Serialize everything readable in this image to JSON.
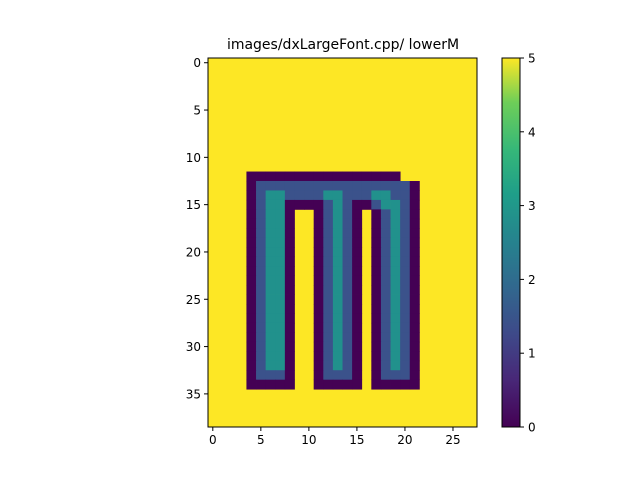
{
  "chart_data": {
    "type": "heatmap",
    "title": "images/dxLargeFont.cpp/ lowerM",
    "xlabel": "",
    "ylabel": "",
    "colormap": "viridis",
    "columns": 28,
    "rows": 39,
    "xlim": [
      -0.5,
      27.5
    ],
    "ylim": [
      38.5,
      -0.5
    ],
    "x_ticks": [
      0,
      5,
      10,
      15,
      20,
      25
    ],
    "y_ticks": [
      0,
      5,
      10,
      15,
      20,
      25,
      30,
      35
    ],
    "colorbar": {
      "min": 0,
      "max": 5,
      "ticks": [
        0,
        1,
        2,
        3,
        4,
        5
      ]
    },
    "background_value": 5,
    "grid": [
      "5555555555555555555555555555",
      "5555555555555555555555555555",
      "5555555555555555555555555555",
      "5555555555555555555555555555",
      "5555555555555555555555555555",
      "5555555555555555555555555555",
      "5555555555555555555555555555",
      "5555555555555555555555555555",
      "5555555555555555555555555555",
      "5555555555555555555555555555",
      "5555555555555555555555555555",
      "5555555555555555555555555555",
      "5555000000000000000055555555",
      "5555011111111111111110555555",
      "5555012211112211122110555555",
      "5555012200001210012210555555",
      "5555012205501210501210555555",
      "5555012205501210501210555555",
      "5555012205501210501210555555",
      "5555012205501210501210555555",
      "5555012205501210501210555555",
      "5555012205501210501210555555",
      "5555012205501210501210555555",
      "5555012205501210501210555555",
      "5555012205501210501210555555",
      "5555012205501210501210555555",
      "5555012205501210501210555555",
      "5555012205501210501210555555",
      "5555012205501210501210555555",
      "5555012205501210501210555555",
      "5555012205501210501210555555",
      "5555012205501210501210555555",
      "5555012205501210501210555555",
      "5555011105501110501110555555",
      "5555000005500000500000555555",
      "5555555555555555555555555555",
      "5555555555555555555555555555",
      "5555555555555555555555555555",
      "5555555555555555555555555555"
    ],
    "value_colors": {
      "0": "#440154",
      "1": "#3b528b",
      "2": "#21918c",
      "3": "#21918c",
      "4": "#5ec962",
      "5": "#fde725"
    }
  }
}
